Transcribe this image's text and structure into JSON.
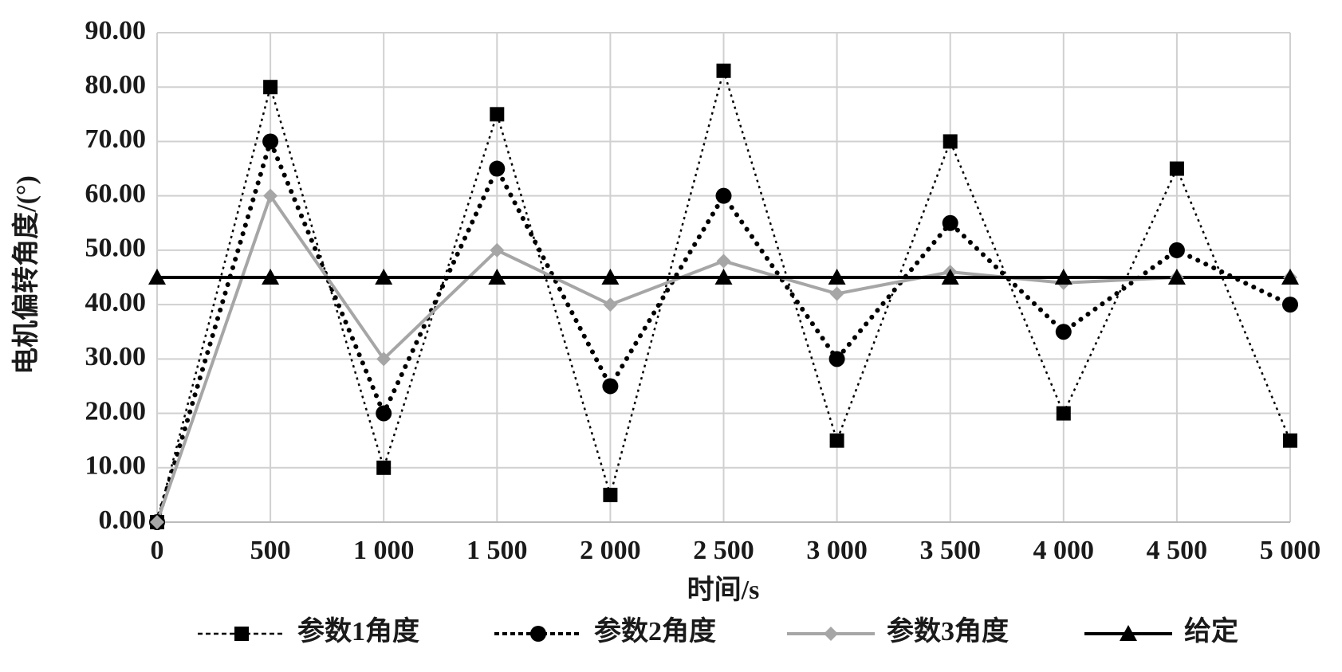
{
  "chart_data": {
    "type": "line",
    "x_label": "时间/s",
    "y_label": "电机偏转角度/(°)",
    "x": [
      0,
      500,
      1000,
      1500,
      2000,
      2500,
      3000,
      3500,
      4000,
      4500,
      5000
    ],
    "xlim": [
      0,
      5000
    ],
    "xticks": [
      0,
      500,
      {
        "value": 1000,
        "label": "1 000"
      },
      {
        "value": 1500,
        "label": "1 500"
      },
      {
        "value": 2000,
        "label": "2 000"
      },
      {
        "value": 2500,
        "label": "2 500"
      },
      {
        "value": 3000,
        "label": "3 000"
      },
      {
        "value": 3500,
        "label": "3 500"
      },
      {
        "value": 4000,
        "label": "4 000"
      },
      {
        "value": 4500,
        "label": "4 500"
      },
      {
        "value": 5000,
        "label": "5 000"
      }
    ],
    "ylim": [
      0,
      90
    ],
    "yticks": [
      {
        "value": 0,
        "label": "0.00"
      },
      {
        "value": 10,
        "label": "10.00"
      },
      {
        "value": 20,
        "label": "20.00"
      },
      {
        "value": 30,
        "label": "30.00"
      },
      {
        "value": 40,
        "label": "40.00"
      },
      {
        "value": 50,
        "label": "50.00"
      },
      {
        "value": 60,
        "label": "60.00"
      },
      {
        "value": 70,
        "label": "70.00"
      },
      {
        "value": 80,
        "label": "80.00"
      },
      {
        "value": 90,
        "label": "90.00"
      }
    ],
    "grid": true,
    "legend": "bottom",
    "series": [
      {
        "name": "参数1角度",
        "color": "#000000",
        "marker": "square",
        "line_style": "fine-dotted",
        "values": [
          0,
          80,
          10,
          75,
          5,
          83,
          15,
          70,
          20,
          65,
          15
        ]
      },
      {
        "name": "参数2角度",
        "color": "#000000",
        "marker": "circle",
        "line_style": "dotted",
        "values": [
          0,
          70,
          20,
          65,
          25,
          60,
          30,
          55,
          35,
          50,
          40
        ]
      },
      {
        "name": "参数3角度",
        "color": "#a6a6a6",
        "marker": "diamond",
        "line_style": "solid",
        "values": [
          0,
          60,
          30,
          50,
          40,
          48,
          42,
          46,
          44,
          45,
          45
        ]
      },
      {
        "name": "给定",
        "color": "#000000",
        "marker": "triangle",
        "line_style": "solid",
        "values": [
          45,
          45,
          45,
          45,
          45,
          45,
          45,
          45,
          45,
          45,
          45
        ]
      }
    ]
  }
}
